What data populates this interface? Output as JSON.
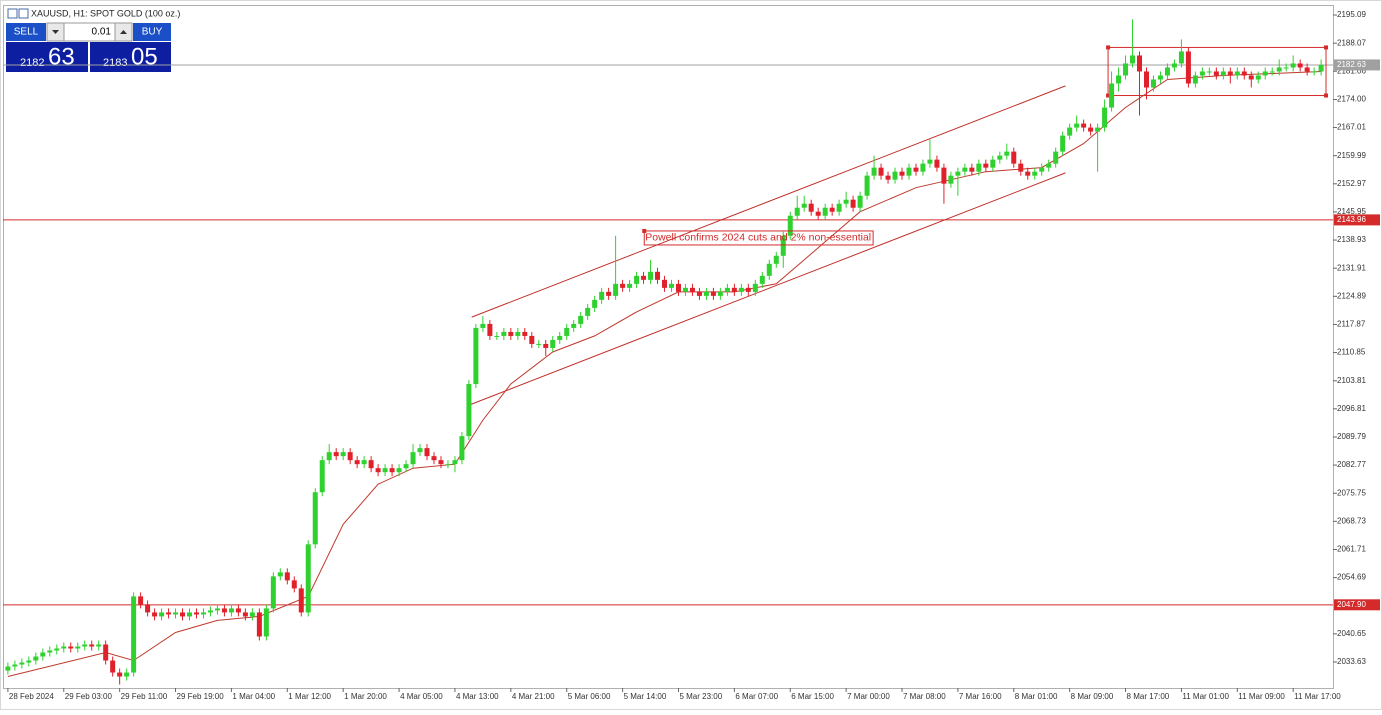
{
  "chart_data": {
    "type": "candlestick",
    "title": "XAUUSD, H1:  SPOT GOLD (100 oz.)",
    "open": [
      2031.5,
      2032.5,
      2033,
      2033.5,
      2034,
      2035,
      2036,
      2036.5,
      2037,
      2037.5,
      2037,
      2037.5,
      2038,
      2037.5,
      2038,
      2034,
      2031,
      2030,
      2031,
      2050,
      2048,
      2046,
      2045,
      2046,
      2045.5,
      2046,
      2045,
      2046,
      2045.5,
      2046,
      2046.5,
      2047,
      2046,
      2047,
      2046,
      2045,
      2046,
      2040,
      2047,
      2055,
      2056,
      2054,
      2052,
      2046,
      2063,
      2076,
      2084,
      2086,
      2085,
      2086,
      2084,
      2083,
      2084,
      2082,
      2081,
      2082,
      2081,
      2082,
      2083,
      2086,
      2087,
      2085,
      2084,
      2083,
      2083,
      2084,
      2090,
      2103,
      2117,
      2118,
      2115,
      2115,
      2116,
      2115,
      2116,
      2115,
      2113,
      2113,
      2112,
      2114,
      2115,
      2117,
      2118,
      2120,
      2122,
      2124,
      2126,
      2125,
      2128,
      2127,
      2128,
      2130,
      2129,
      2131,
      2129,
      2127,
      2128,
      2126,
      2127,
      2126,
      2125,
      2126,
      2125,
      2126,
      2127,
      2126,
      2127,
      2126,
      2128,
      2130,
      2133,
      2135,
      2140,
      2145,
      2147,
      2148,
      2146,
      2145,
      2147,
      2146,
      2148,
      2149,
      2147,
      2150,
      2155,
      2157,
      2155,
      2154,
      2156,
      2155,
      2157,
      2156,
      2158,
      2159,
      2157,
      2153,
      2155,
      2156,
      2157,
      2156,
      2158,
      2157,
      2159,
      2160,
      2161,
      2158,
      2156,
      2155,
      2156,
      2157,
      2158,
      2161,
      2165,
      2167,
      2168,
      2167,
      2166,
      2167,
      2172,
      2178,
      2180,
      2183,
      2185,
      2181,
      2177,
      2179,
      2180,
      2182,
      2183,
      2186,
      2178,
      2180,
      2181,
      2181,
      2180,
      2181,
      2180,
      2181,
      2180,
      2179,
      2180,
      2181,
      2181,
      2182,
      2182,
      2183,
      2182,
      2181,
      2181
    ],
    "high": [
      2033.5,
      2034,
      2034.5,
      2035,
      2036,
      2037,
      2037.5,
      2038,
      2038.5,
      2038.5,
      2038.5,
      2039,
      2039,
      2039,
      2039,
      2035,
      2032,
      2032,
      2051,
      2051,
      2049,
      2047,
      2047,
      2047,
      2047,
      2047,
      2047,
      2047,
      2047,
      2047.5,
      2048,
      2048,
      2048,
      2048,
      2047,
      2047,
      2047,
      2048,
      2056,
      2057,
      2057,
      2055,
      2053,
      2064,
      2077,
      2085,
      2088,
      2087,
      2087,
      2087,
      2085,
      2085,
      2085,
      2083,
      2083,
      2083,
      2083,
      2084,
      2088,
      2088,
      2088,
      2086,
      2085,
      2084,
      2085,
      2091,
      2104,
      2118,
      2120,
      2119,
      2116,
      2117,
      2117,
      2117,
      2117,
      2116,
      2114,
      2114,
      2115,
      2116,
      2118,
      2119,
      2121,
      2123,
      2125,
      2127,
      2127,
      2140,
      2129,
      2129,
      2131,
      2131,
      2134,
      2132,
      2130,
      2129,
      2129,
      2128,
      2128,
      2127,
      2127,
      2127,
      2127,
      2128,
      2128,
      2128,
      2128,
      2129,
      2131,
      2134,
      2136,
      2141,
      2146,
      2150,
      2150,
      2149,
      2147,
      2148,
      2148,
      2149,
      2151,
      2150,
      2151,
      2156,
      2160,
      2158,
      2156,
      2157,
      2157,
      2158,
      2158,
      2159,
      2164,
      2160,
      2158,
      2156,
      2157,
      2158,
      2158,
      2159,
      2159,
      2160,
      2161,
      2163,
      2162,
      2159,
      2157,
      2157,
      2158,
      2159,
      2162,
      2166,
      2168,
      2170,
      2169,
      2168,
      2168,
      2174,
      2181,
      2182,
      2185,
      2194,
      2186,
      2182,
      2180,
      2181,
      2183,
      2184,
      2189,
      2187,
      2181,
      2182,
      2182,
      2182,
      2182,
      2182,
      2182,
      2182,
      2181,
      2181,
      2182,
      2182,
      2184,
      2183,
      2185,
      2184,
      2183,
      2182,
      2184
    ],
    "low": [
      2030.5,
      2031.5,
      2032,
      2032.5,
      2033,
      2034,
      2035,
      2035.5,
      2036,
      2036,
      2036,
      2036.5,
      2036.5,
      2036.5,
      2033,
      2030,
      2028,
      2029,
      2030,
      2047,
      2045,
      2044,
      2044,
      2044.5,
      2044.5,
      2044,
      2044,
      2044.5,
      2044.5,
      2045,
      2045.5,
      2045,
      2045,
      2045,
      2044,
      2044,
      2039,
      2039,
      2046,
      2054,
      2053,
      2051,
      2045,
      2045,
      2062,
      2075,
      2083,
      2084,
      2084,
      2083,
      2082,
      2082,
      2081,
      2080,
      2080,
      2080,
      2080,
      2081,
      2082,
      2085,
      2084,
      2083,
      2082,
      2082,
      2081,
      2083,
      2089,
      2102,
      2116,
      2114,
      2114,
      2114,
      2114,
      2114,
      2114,
      2112,
      2112,
      2110,
      2111,
      2113,
      2114,
      2116,
      2117,
      2119,
      2121,
      2123,
      2124,
      2124,
      2126,
      2126,
      2127,
      2128,
      2128,
      2128,
      2126,
      2126,
      2125,
      2125,
      2125,
      2124,
      2124,
      2124,
      2124,
      2125,
      2125,
      2125,
      2125,
      2125,
      2127,
      2129,
      2132,
      2132,
      2139,
      2144,
      2146,
      2145,
      2144,
      2144,
      2145,
      2145,
      2147,
      2146,
      2146,
      2149,
      2154,
      2154,
      2153,
      2153,
      2154,
      2154,
      2155,
      2155,
      2157,
      2156,
      2148,
      2152,
      2150,
      2155,
      2155,
      2155,
      2156,
      2156,
      2158,
      2159,
      2157,
      2155,
      2154,
      2154,
      2155,
      2156,
      2157,
      2160,
      2164,
      2166,
      2166,
      2165,
      2156,
      2166,
      2171,
      2176,
      2179,
      2182,
      2170,
      2174,
      2176,
      2178,
      2179,
      2181,
      2182,
      2177,
      2177,
      2179,
      2180,
      2179,
      2179,
      2178,
      2179,
      2179,
      2177,
      2178,
      2179,
      2180,
      2180,
      2181,
      2181,
      2181,
      2180,
      2180,
      2180
    ],
    "close": [
      2032.5,
      2033,
      2033.5,
      2034,
      2035,
      2036,
      2036.5,
      2037,
      2037.5,
      2037,
      2037.5,
      2038,
      2037.5,
      2038,
      2034,
      2031,
      2030,
      2031,
      2050,
      2048,
      2046,
      2045,
      2046,
      2045.5,
      2046,
      2045,
      2046,
      2045.5,
      2046,
      2046.5,
      2047,
      2046,
      2047,
      2046,
      2045,
      2046,
      2040,
      2047,
      2055,
      2056,
      2054,
      2052,
      2046,
      2063,
      2076,
      2084,
      2086,
      2085,
      2086,
      2084,
      2083,
      2084,
      2082,
      2081,
      2082,
      2081,
      2082,
      2083,
      2086,
      2087,
      2085,
      2084,
      2083,
      2083,
      2084,
      2090,
      2103,
      2117,
      2118,
      2115,
      2115,
      2116,
      2115,
      2116,
      2115,
      2113,
      2113,
      2112,
      2114,
      2115,
      2117,
      2118,
      2120,
      2122,
      2124,
      2126,
      2125,
      2128,
      2127,
      2128,
      2130,
      2129,
      2131,
      2129,
      2127,
      2128,
      2126,
      2127,
      2126,
      2125,
      2126,
      2125,
      2126,
      2127,
      2126,
      2127,
      2126,
      2128,
      2130,
      2133,
      2135,
      2140,
      2145,
      2147,
      2148,
      2146,
      2145,
      2147,
      2146,
      2148,
      2149,
      2147,
      2150,
      2155,
      2157,
      2155,
      2154,
      2156,
      2155,
      2157,
      2156,
      2158,
      2159,
      2157,
      2153,
      2155,
      2156,
      2157,
      2156,
      2158,
      2157,
      2159,
      2160,
      2161,
      2158,
      2156,
      2155,
      2156,
      2157,
      2158,
      2161,
      2165,
      2167,
      2168,
      2167,
      2166,
      2167,
      2172,
      2178,
      2180,
      2183,
      2185,
      2181,
      2177,
      2179,
      2180,
      2182,
      2183,
      2186,
      2178,
      2180,
      2181,
      2181,
      2180,
      2181,
      2180,
      2181,
      2180,
      2179,
      2180,
      2181,
      2181,
      2182,
      2182,
      2183,
      2182,
      2181,
      2181,
      2182.63
    ],
    "up_color": "#2fd12f",
    "down_color": "#e0202a",
    "xlim": [
      -0.7,
      189.7
    ],
    "ylim": [
      2027.14,
      2197.59
    ],
    "xticks": [
      {
        "value": 0,
        "label": "28 Feb 2024"
      },
      {
        "value": 8,
        "label": "29 Feb 03:00"
      },
      {
        "value": 16,
        "label": "29 Feb 11:00"
      },
      {
        "value": 24,
        "label": "29 Feb 19:00"
      },
      {
        "value": 32,
        "label": "1 Mar 04:00"
      },
      {
        "value": 40,
        "label": "1 Mar 12:00"
      },
      {
        "value": 48,
        "label": "1 Mar 20:00"
      },
      {
        "value": 56,
        "label": "4 Mar 05:00"
      },
      {
        "value": 64,
        "label": "4 Mar 13:00"
      },
      {
        "value": 72,
        "label": "4 Mar 21:00"
      },
      {
        "value": 80,
        "label": "5 Mar 06:00"
      },
      {
        "value": 88,
        "label": "5 Mar 14:00"
      },
      {
        "value": 96,
        "label": "5 Mar 23:00"
      },
      {
        "value": 104,
        "label": "6 Mar 07:00"
      },
      {
        "value": 112,
        "label": "6 Mar 15:00"
      },
      {
        "value": 120,
        "label": "7 Mar 00:00"
      },
      {
        "value": 128,
        "label": "7 Mar 08:00"
      },
      {
        "value": 136,
        "label": "7 Mar 16:00"
      },
      {
        "value": 144,
        "label": "8 Mar 01:00"
      },
      {
        "value": 152,
        "label": "8 Mar 09:00"
      },
      {
        "value": 160,
        "label": "8 Mar 17:00"
      },
      {
        "value": 168,
        "label": "11 Mar 01:00"
      },
      {
        "value": 176,
        "label": "11 Mar 09:00"
      },
      {
        "value": 184,
        "label": "11 Mar 17:00"
      }
    ],
    "yticks": [
      2195.09,
      2188.07,
      2181.06,
      {
        "value": 2174,
        "label": "2174.00"
      },
      2167.01,
      2159.99,
      2152.97,
      2145.95,
      2138.93,
      2131.91,
      2124.89,
      2117.87,
      2110.85,
      2103.81,
      2096.81,
      2089.79,
      2082.77,
      2075.75,
      2068.73,
      2061.71,
      2054.69,
      2040.65,
      2033.63
    ],
    "hlines": [
      {
        "value": 2143.96,
        "color": "#d42a2a"
      },
      {
        "value": 2047.9,
        "label": "2047.90",
        "color": "#d42a2a"
      },
      {
        "value": 2182.63,
        "color": "#a0a0a0"
      }
    ],
    "moving_average": {
      "color": "#c0392b",
      "x": [
        0,
        14,
        18,
        24,
        30,
        36,
        43,
        48,
        53,
        58,
        64,
        68,
        72,
        78,
        84,
        90,
        96,
        104,
        110,
        116,
        122,
        130,
        140,
        148,
        154,
        160,
        166,
        174,
        188
      ],
      "values": [
        2030,
        2036,
        2034,
        2041,
        2044,
        2045,
        2050,
        2068,
        2078,
        2082,
        2083,
        2094,
        2103,
        2111,
        2115,
        2121,
        2126,
        2126,
        2128,
        2137,
        2146,
        2152,
        2156,
        2157,
        2163,
        2172,
        2179,
        2180,
        2181
      ]
    },
    "trendlines": [
      {
        "color": "#c0302b",
        "x": [
          66.4,
          151.4
        ],
        "y": [
          2119.7,
          2177.4
        ]
      },
      {
        "color": "#c0302b",
        "x": [
          66.1,
          151.4
        ],
        "y": [
          2097.8,
          2155.7
        ]
      }
    ],
    "rectangle": {
      "color": "#d42a2a",
      "x": [
        157.5,
        188.7
      ],
      "y": [
        2175,
        2187
      ]
    },
    "annotation": {
      "text": "Powell confirms 2024 cuts and 2% non-essential",
      "x": 91.1,
      "y": 2141.2,
      "color": "#d42a2a"
    },
    "trade_panel": {
      "sell_label": "SELL",
      "buy_label": "BUY",
      "lot": "0.01",
      "sell_price_main": "2182",
      "sell_price_pips": "63",
      "buy_price_main": "2183",
      "buy_price_pips": "05"
    }
  }
}
